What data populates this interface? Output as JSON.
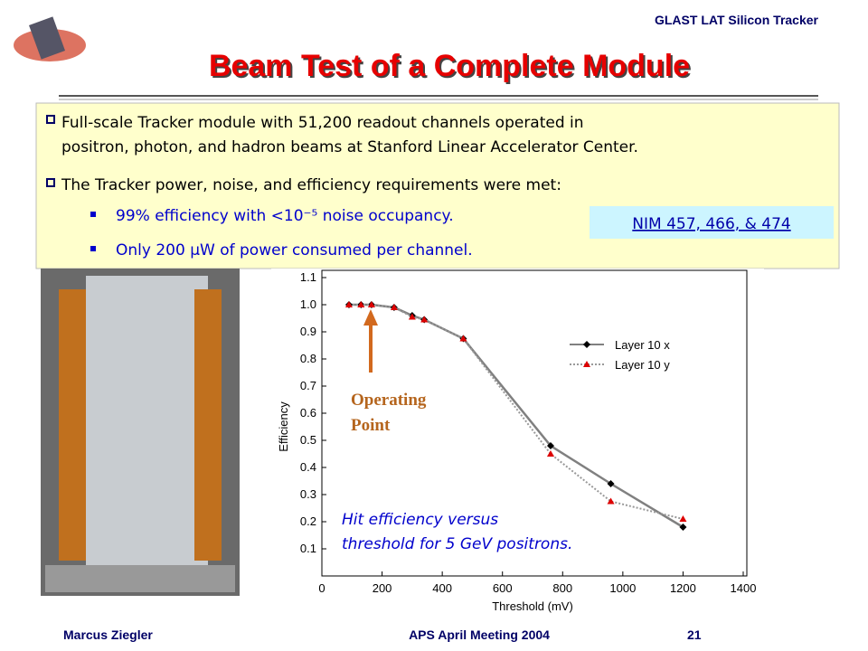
{
  "header": {
    "org": "GLAST LAT Silicon Tracker",
    "title": "Beam Test of a Complete Module"
  },
  "bullets": [
    {
      "text": "Full-scale Tracker module with 51,200 readout channels operated in",
      "text2": "positron, photon, and hadron beams at Stanford Linear Accelerator Center."
    },
    {
      "text": "The Tracker power, noise, and efficiency requirements were met:"
    }
  ],
  "sub_bullets": [
    "99% efficiency with <10⁻⁵ noise occupancy.",
    "Only 200 μW of power consumed per channel."
  ],
  "reference": "NIM 457, 466, & 474",
  "chart_data": {
    "type": "line",
    "xlabel": "Threshold (mV)",
    "ylabel": "Efficiency",
    "xlim": [
      0,
      1400
    ],
    "xticks": [
      0,
      200,
      400,
      600,
      800,
      1000,
      1200,
      1400
    ],
    "ylim": [
      0,
      1.1
    ],
    "yticks": [
      0.1,
      0.2,
      0.3,
      0.4,
      0.5,
      0.6,
      0.7,
      0.8,
      0.9,
      {
        "value": 1,
        "label": "1.0"
      },
      1.1
    ],
    "x": [
      90,
      130,
      165,
      240,
      300,
      340,
      470,
      760,
      960,
      1200
    ],
    "series": [
      {
        "name": "Layer 10 x",
        "color": "#808080",
        "marker_color": "#000000",
        "values": [
          1.0,
          1.0,
          1.0,
          0.99,
          0.96,
          0.945,
          0.875,
          0.48,
          0.34,
          0.18
        ]
      },
      {
        "name": "Layer 10 y",
        "color": "#999999",
        "marker_color": "#dd0000",
        "values": [
          1.0,
          1.0,
          1.0,
          0.99,
          0.955,
          0.945,
          0.875,
          0.45,
          0.275,
          0.21
        ]
      }
    ],
    "annotation": [
      "Operating",
      "Point"
    ],
    "caption": [
      "Hit efficiency versus",
      "threshold for 5 GeV positrons."
    ]
  },
  "footer": {
    "author": "Marcus Ziegler",
    "meeting": "APS April Meeting 2004",
    "page": "21"
  }
}
